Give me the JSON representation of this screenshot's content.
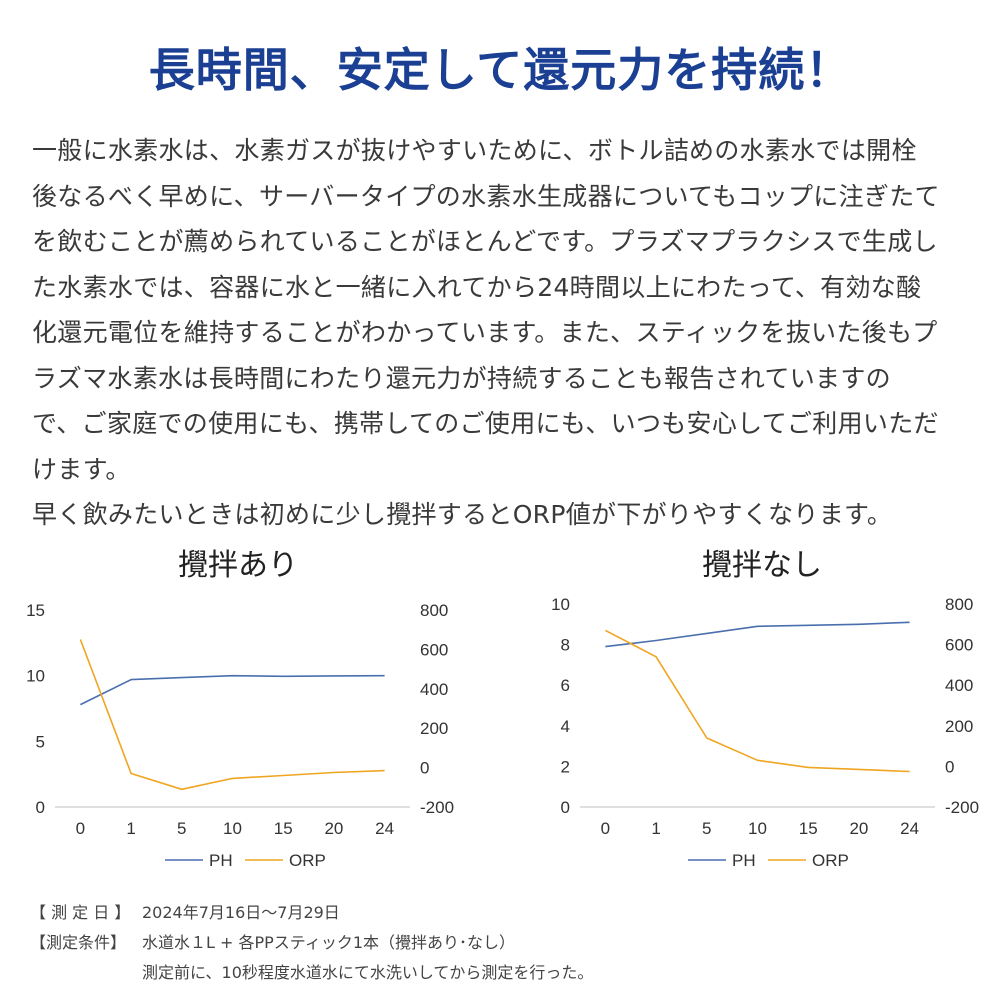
{
  "headline": "長時間、安定して還元力を持続！",
  "body_lines": [
    "一般に水素水は、水素ガスが抜けやすいために、ボトル詰めの水素水では開栓",
    "後なるべく早めに、サーバータイプの水素水生成器についてもコップに注ぎたて",
    "を飲むことが薦められていることがほとんどです。プラズマプラクシスで生成し",
    "た水素水では、容器に水と一緒に入れてから24時間以上にわたって、有効な酸",
    "化還元電位を維持することがわかっています。また、スティックを抜いた後もプ",
    "ラズマ水素水は長時間にわたり還元力が持続することも報告されていますの",
    "で、ご家庭での使用にも、携帯してのご使用にも、いつも安心してご利用いただ",
    "けます。",
    "早く飲みたいときは初めに少し攪拌するとORP値が下がりやすくなります。"
  ],
  "colors": {
    "headline": "#1a3f93",
    "ph": "#4a6fae",
    "orp": "#f0a521",
    "axis": "#bfbfbf"
  },
  "chart_data": [
    {
      "type": "line",
      "title": "攪拌あり",
      "categories": [
        "0",
        "1",
        "5",
        "10",
        "15",
        "20",
        "24"
      ],
      "y_left_ticks": [
        "15",
        "10",
        "5",
        "0"
      ],
      "y_right_ticks": [
        "800",
        "600",
        "400",
        "200",
        "0",
        "-200"
      ],
      "ylim_left": [
        0,
        15
      ],
      "ylim_right": [
        -200,
        800
      ],
      "series": [
        {
          "name": "PH",
          "axis": "left",
          "values": [
            7.8,
            9.7,
            9.85,
            10.0,
            9.95,
            9.98,
            10.0
          ]
        },
        {
          "name": "ORP",
          "axis": "right",
          "values": [
            650,
            -30,
            -110,
            -55,
            -40,
            -25,
            -15
          ]
        }
      ],
      "legend": "bottom"
    },
    {
      "type": "line",
      "title": "攪拌なし",
      "categories": [
        "0",
        "1",
        "5",
        "10",
        "15",
        "20",
        "24"
      ],
      "y_left_ticks": [
        "10",
        "8",
        "6",
        "4",
        "2",
        "0"
      ],
      "y_right_ticks": [
        "800",
        "600",
        "400",
        "200",
        "0",
        "-200"
      ],
      "ylim_left": [
        0,
        10
      ],
      "ylim_right": [
        -200,
        800
      ],
      "series": [
        {
          "name": "PH",
          "axis": "left",
          "values": [
            7.9,
            8.2,
            8.55,
            8.9,
            8.95,
            9.0,
            9.1
          ]
        },
        {
          "name": "ORP",
          "axis": "right",
          "values": [
            670,
            540,
            140,
            30,
            -5,
            -15,
            -25
          ]
        }
      ],
      "legend": "bottom"
    }
  ],
  "notes": {
    "date_label": "【 測 定 日 】",
    "date_value": "2024年7月16日〜7月29日",
    "cond_label": "【測定条件】",
    "cond_value": "水道水１L + 各PPスティック1本（攪拌あり･なし）",
    "cond_value2": "測定前に、10秒程度水道水にて水洗いしてから測定を行った。"
  }
}
